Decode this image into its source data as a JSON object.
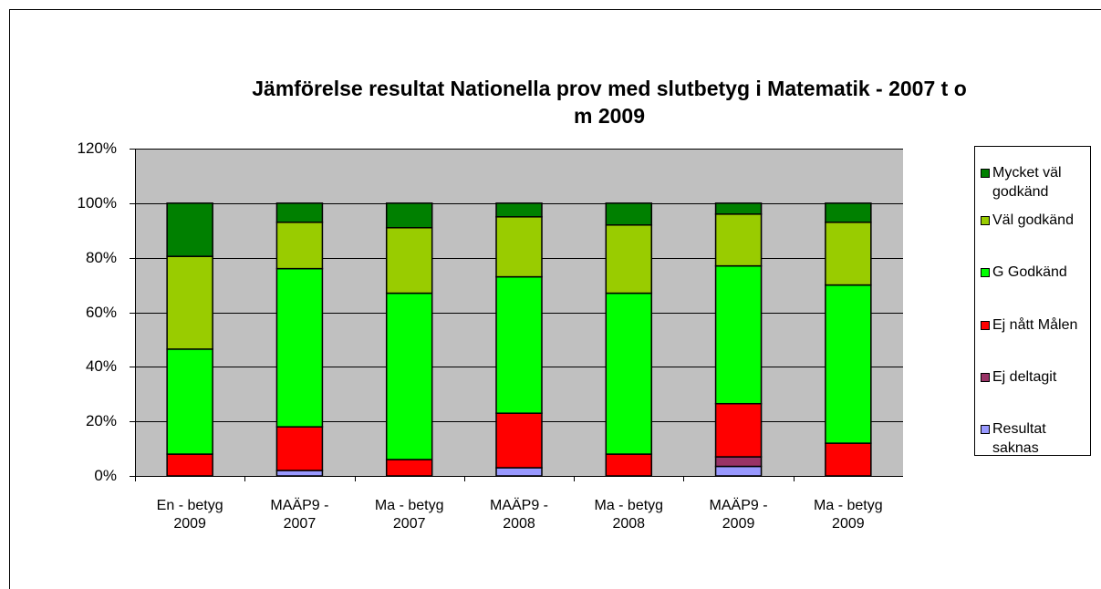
{
  "chart_data": {
    "type": "stacked_bar",
    "title": "Jämförelse resultat Nationella prov med slutbetyg i Matematik  - 2007 t o m 2009",
    "categories": [
      "En - betyg 2009",
      "MAÄP9 - 2007",
      "Ma - betyg 2007",
      "MAÄP9 - 2008",
      "Ma - betyg 2008",
      "MAÄP9 - 2009",
      "Ma - betyg 2009"
    ],
    "series": [
      {
        "name": "Resultat saknas",
        "color": "#9999ff",
        "values": [
          0,
          2,
          0,
          3,
          0,
          3.5,
          0
        ]
      },
      {
        "name": "Ej deltagit",
        "color": "#993366",
        "values": [
          0,
          0,
          0,
          0,
          0,
          3.5,
          0
        ]
      },
      {
        "name": "Ej nått Målen",
        "color": "#ff0000",
        "values": [
          8,
          16,
          6,
          20,
          8,
          19.5,
          12
        ]
      },
      {
        "name": "G Godkänd",
        "color": "#00ff00",
        "values": [
          38.5,
          58,
          61,
          50,
          59,
          50.5,
          58
        ]
      },
      {
        "name": "Väl godkänd",
        "color": "#99cc00",
        "values": [
          34,
          17,
          24,
          22,
          25,
          19,
          23
        ]
      },
      {
        "name": "Mycket väl godkänd",
        "color": "#008000",
        "values": [
          19.5,
          7,
          9,
          5,
          8,
          4,
          7
        ]
      }
    ],
    "ylim": [
      0,
      120
    ],
    "yticks": [
      {
        "value": 0,
        "label": "0%"
      },
      {
        "value": 20,
        "label": "20%"
      },
      {
        "value": 40,
        "label": "40%"
      },
      {
        "value": 60,
        "label": "60%"
      },
      {
        "value": 80,
        "label": "80%"
      },
      {
        "value": 100,
        "label": "100%"
      },
      {
        "value": 120,
        "label": "120%"
      }
    ],
    "grid": true,
    "legend": "right",
    "plot_background": "#c0c0c0"
  }
}
